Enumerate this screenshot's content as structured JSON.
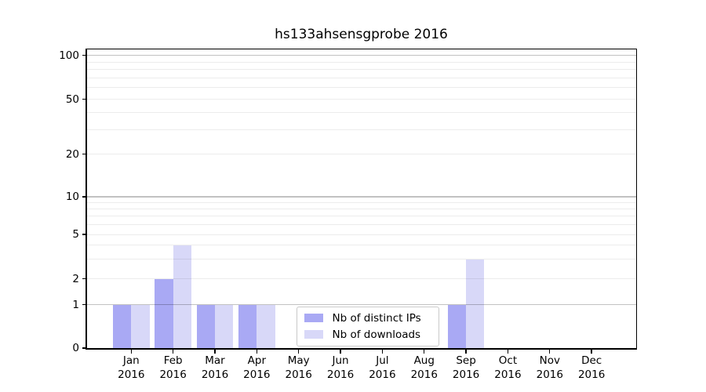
{
  "chart_data": {
    "type": "bar",
    "title": "hs133ahsensgprobe 2016",
    "categories": [
      "Jan",
      "Feb",
      "Mar",
      "Apr",
      "May",
      "Jun",
      "Jul",
      "Aug",
      "Sep",
      "Oct",
      "Nov",
      "Dec"
    ],
    "x_tick_year": "2016",
    "series": [
      {
        "name": "Nb of distinct IPs",
        "color": "#a9a9f4",
        "values": [
          1,
          2,
          1,
          1,
          0,
          0,
          0,
          0,
          1,
          0,
          0,
          0
        ]
      },
      {
        "name": "Nb of downloads",
        "color": "#d8d8f8",
        "values": [
          1,
          4,
          1,
          1,
          0,
          0,
          0,
          0,
          3,
          0,
          0,
          0
        ]
      }
    ],
    "y_axis": {
      "ticks": [
        0,
        1,
        2,
        5,
        10,
        20,
        50,
        100
      ],
      "ylim": [
        0,
        100
      ],
      "scale": "log-like, linear between 0 and 1",
      "major_grid_values": [
        1,
        10,
        100
      ],
      "minor_grid_values": [
        2,
        3,
        4,
        5,
        6,
        7,
        8,
        9,
        20,
        30,
        40,
        50,
        60,
        70,
        80,
        90
      ]
    },
    "legend": {
      "position": "lower center",
      "entries": [
        "Nb of distinct IPs",
        "Nb of downloads"
      ]
    }
  }
}
